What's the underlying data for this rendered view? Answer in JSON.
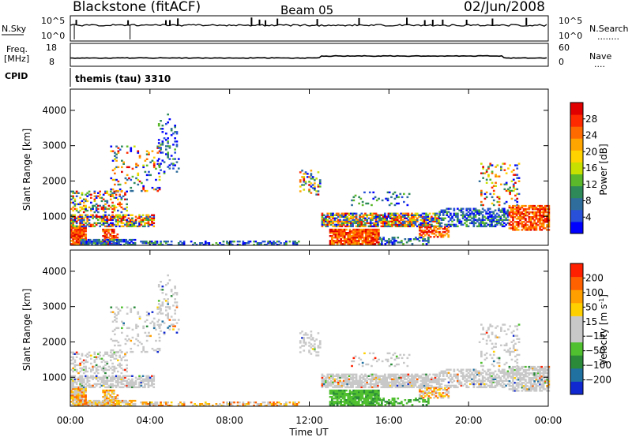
{
  "header": {
    "station": "Blackstone (fitACF)",
    "beam": "Beam 05",
    "date": "02/Jun/2008"
  },
  "sky_panel": {
    "left_label": "N.Sky",
    "left_ticks": [
      "10^5",
      "10^0"
    ],
    "right_ticks": [
      "10^5",
      "10^0"
    ],
    "right_label": "N.Search",
    "right_dots": "........"
  },
  "freq_panel": {
    "left_label_1": "Freq.",
    "left_label_2": "[MHz]",
    "left_ticks": [
      "18",
      "8"
    ],
    "right_ticks": [
      "60",
      "0"
    ],
    "right_label": "Nave",
    "right_dots": "....",
    "cpid_label": "CPID"
  },
  "cpid": {
    "text": "themis (tau) 3310"
  },
  "x_axis": {
    "label": "Time UT",
    "ticks": [
      "00:00",
      "04:00",
      "08:00",
      "12:00",
      "16:00",
      "20:00",
      "00:00"
    ]
  },
  "chart_data": [
    {
      "type": "heatmap",
      "name": "power",
      "ylabel": "Slant Range [km]",
      "yticks": [
        1000,
        2000,
        3000,
        4000
      ],
      "ylim": [
        180,
        4600
      ],
      "xlim_hours": [
        0,
        24
      ],
      "colorbar": {
        "label": "Power [dB]",
        "ticks": [
          "4",
          "8",
          "12",
          "16",
          "20",
          "24",
          "28"
        ],
        "colors": [
          "#0000ff",
          "#2850d8",
          "#2f6e9c",
          "#2f8a5a",
          "#5ab82a",
          "#c8e000",
          "#ffd200",
          "#ffa500",
          "#ff6a00",
          "#ff2a00",
          "#e00000"
        ]
      }
    },
    {
      "type": "heatmap",
      "name": "velocity",
      "ylabel": "Slant Range [km]",
      "yticks": [
        1000,
        2000,
        3000,
        4000
      ],
      "ylim": [
        180,
        4600
      ],
      "xlim_hours": [
        0,
        24
      ],
      "colorbar": {
        "label": "Velocity [m s^-1]",
        "ticks": [
          "200",
          "100",
          "50",
          "15",
          "-15",
          "-50",
          "-100",
          "-200"
        ],
        "colors": [
          "#1028d0",
          "#2070a0",
          "#2a8a3a",
          "#50c030",
          "#c8c8c8",
          "#c8c8c8",
          "#ffd000",
          "#ffa000",
          "#ff6000",
          "#ff2000"
        ]
      }
    }
  ]
}
